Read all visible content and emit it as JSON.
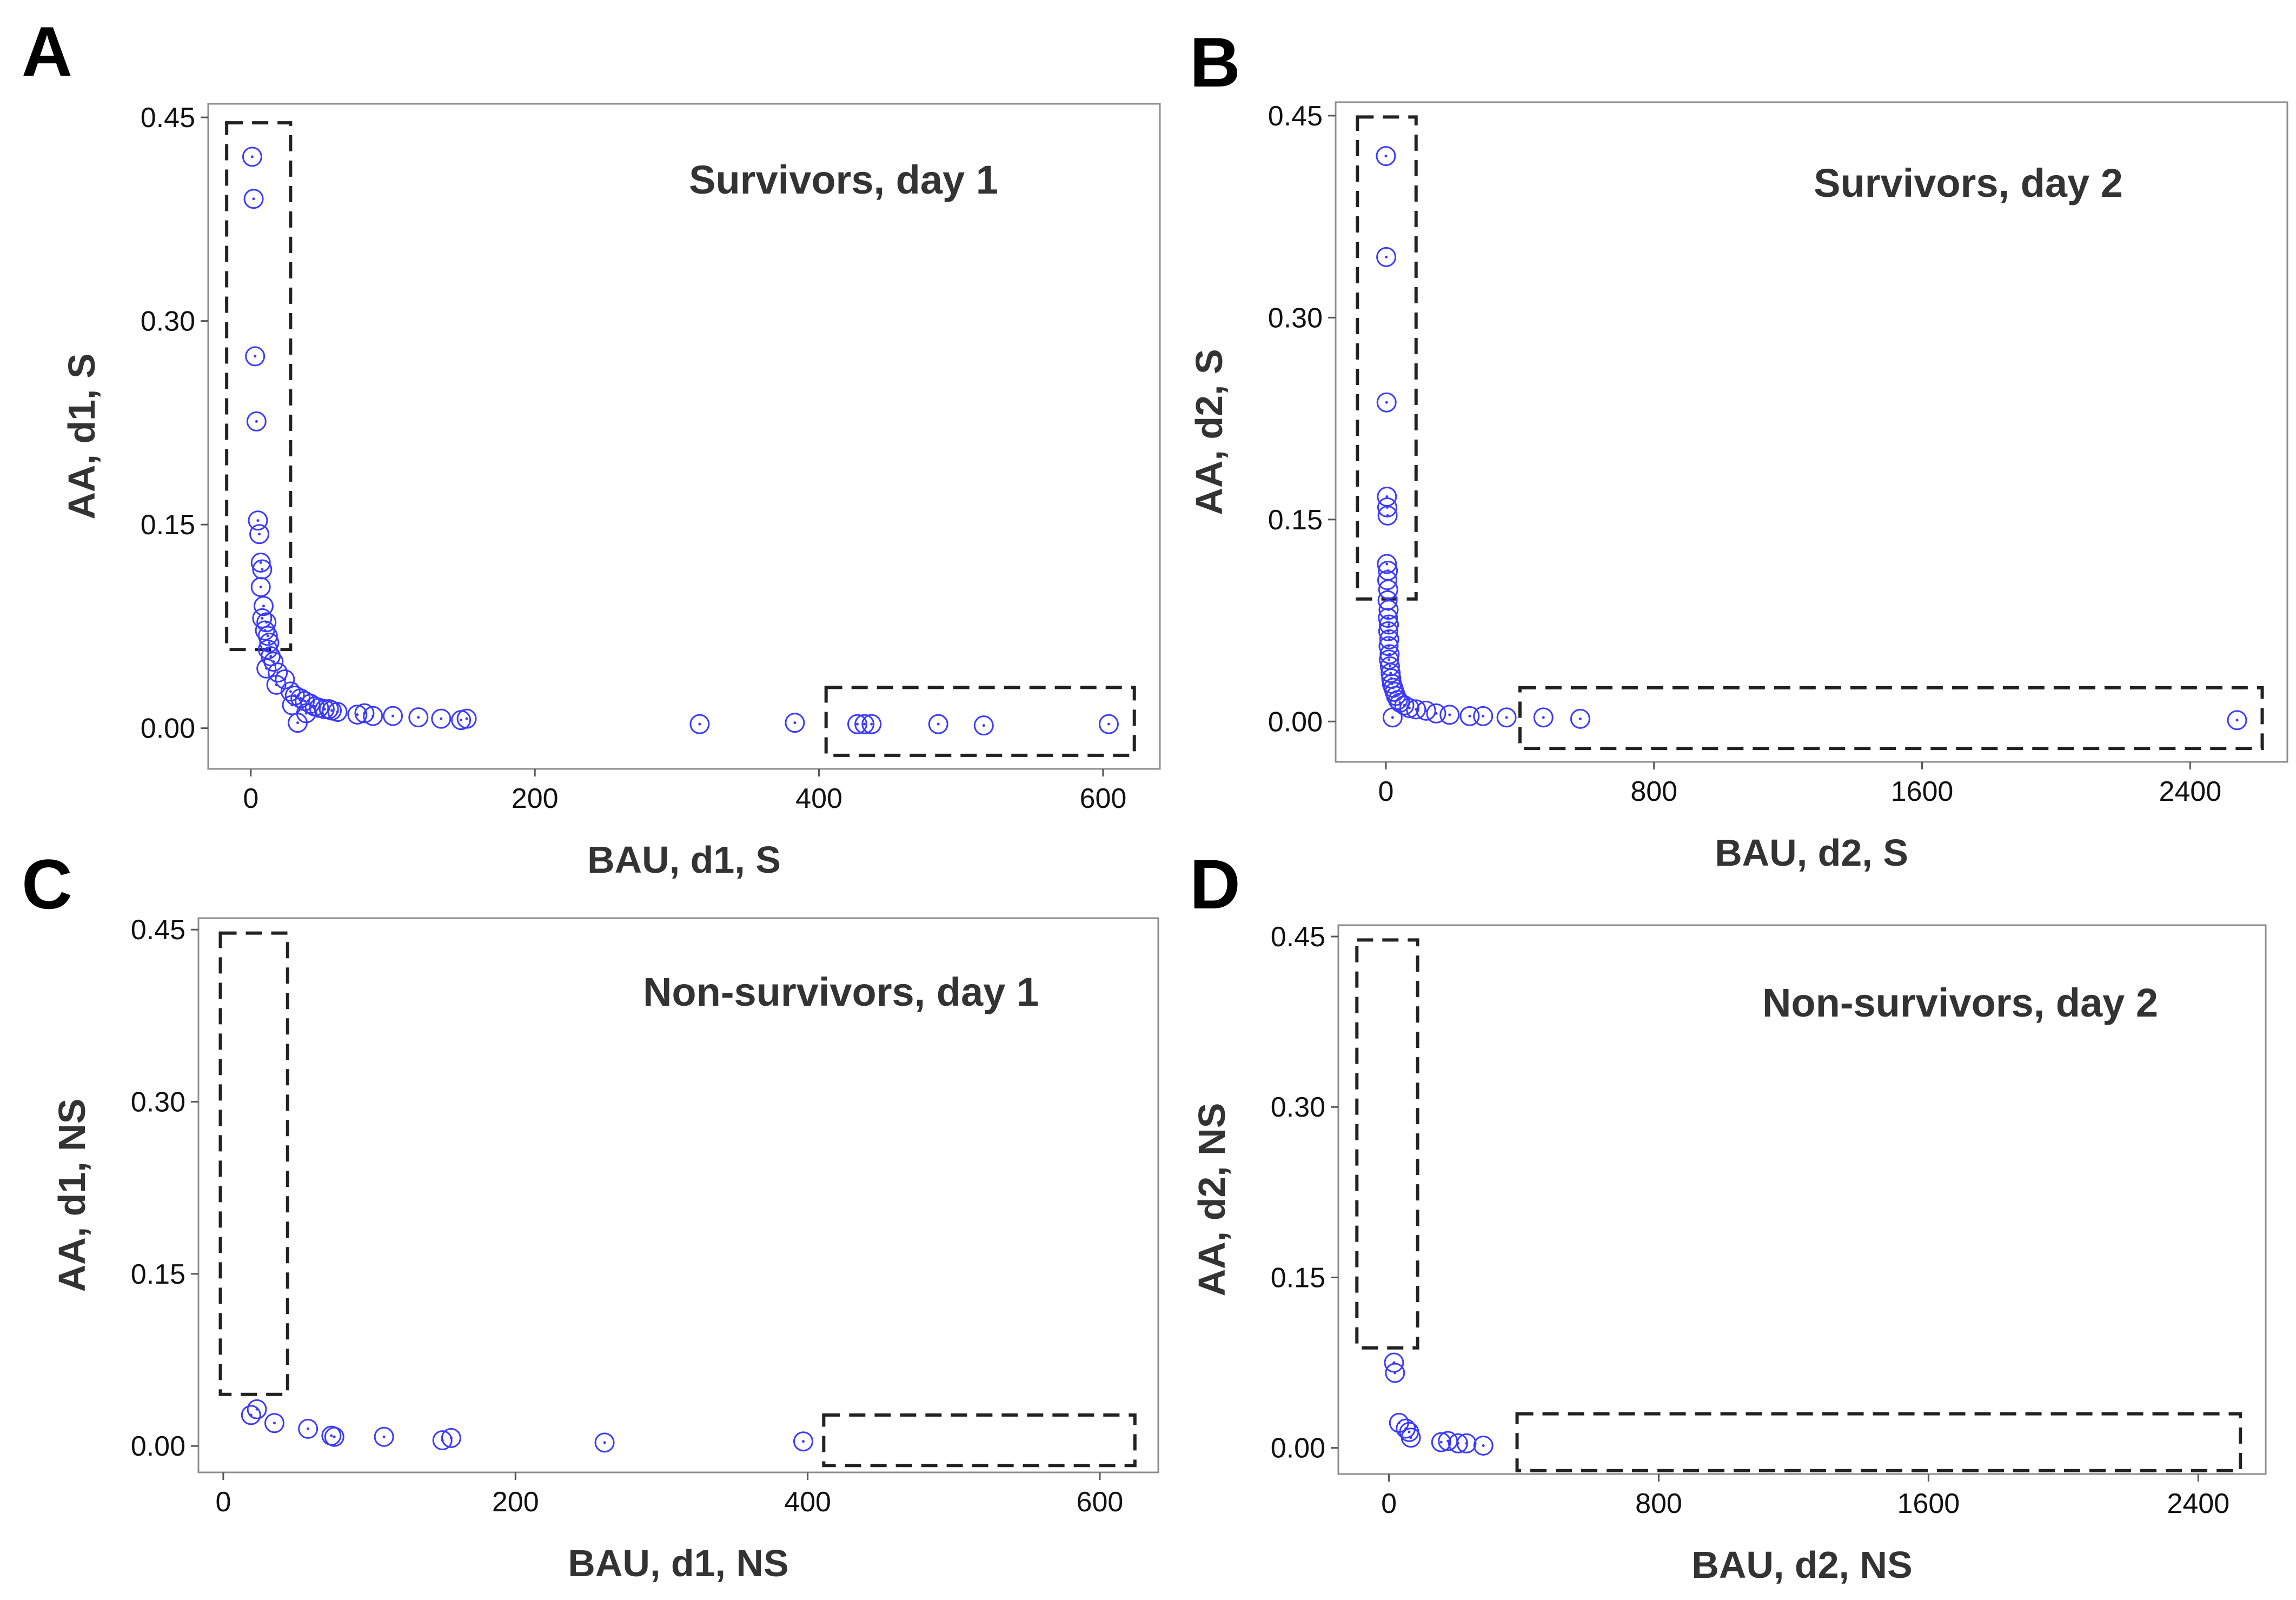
{
  "chart_data": [
    {
      "type": "scatter",
      "panel": "A",
      "title": "Survivors, day 1",
      "xlabel": "BAU, d1, S",
      "ylabel": "AA, d1, S",
      "xlim": [
        -30,
        640
      ],
      "ylim": [
        -0.03,
        0.46
      ],
      "xticks": [
        0,
        200,
        400,
        600
      ],
      "xtick_labels": [
        "0",
        "200",
        "400",
        "600"
      ],
      "yticks": [
        0,
        0.15,
        0.3,
        0.45
      ],
      "ytick_labels": [
        "0.00",
        "0.15",
        "0.30",
        "0.45"
      ],
      "marker_color": "#3a3aff",
      "points": [
        [
          1,
          0.421
        ],
        [
          2,
          0.39
        ],
        [
          3,
          0.274
        ],
        [
          4,
          0.226
        ],
        [
          5,
          0.153
        ],
        [
          6,
          0.143
        ],
        [
          7,
          0.122
        ],
        [
          8,
          0.117
        ],
        [
          7,
          0.104
        ],
        [
          9,
          0.09
        ],
        [
          8,
          0.081
        ],
        [
          11,
          0.078
        ],
        [
          10,
          0.072
        ],
        [
          12,
          0.068
        ],
        [
          13,
          0.063
        ],
        [
          12,
          0.058
        ],
        [
          14,
          0.053
        ],
        [
          16,
          0.049
        ],
        [
          11,
          0.044
        ],
        [
          19,
          0.041
        ],
        [
          24,
          0.036
        ],
        [
          18,
          0.032
        ],
        [
          28,
          0.027
        ],
        [
          31,
          0.024
        ],
        [
          35,
          0.022
        ],
        [
          38,
          0.02
        ],
        [
          42,
          0.018
        ],
        [
          29,
          0.017
        ],
        [
          45,
          0.016
        ],
        [
          48,
          0.015
        ],
        [
          52,
          0.014
        ],
        [
          57,
          0.013
        ],
        [
          61,
          0.012
        ],
        [
          39,
          0.011
        ],
        [
          75,
          0.01
        ],
        [
          80,
          0.011
        ],
        [
          86,
          0.009
        ],
        [
          100,
          0.009
        ],
        [
          118,
          0.008
        ],
        [
          134,
          0.007
        ],
        [
          148,
          0.006
        ],
        [
          152,
          0.007
        ],
        [
          33,
          0.004
        ],
        [
          55,
          0.014
        ],
        [
          316,
          0.003
        ],
        [
          383,
          0.004
        ],
        [
          427,
          0.003
        ],
        [
          432,
          0.003
        ],
        [
          437,
          0.003
        ],
        [
          484,
          0.003
        ],
        [
          516,
          0.002
        ],
        [
          604,
          0.003
        ]
      ],
      "dashed_boxes": [
        {
          "x": [
            -17,
            28
          ],
          "y": [
            0.058,
            0.446
          ]
        },
        {
          "x": [
            405,
            622
          ],
          "y": [
            -0.02,
            0.03
          ]
        }
      ]
    },
    {
      "type": "scatter",
      "panel": "B",
      "title": "Survivors, day 2",
      "xlabel": "BAU, d2, S",
      "ylabel": "AA, d2, S",
      "xlim": [
        -150,
        2690
      ],
      "ylim": [
        -0.03,
        0.46
      ],
      "xticks": [
        0,
        800,
        1600,
        2400
      ],
      "xtick_labels": [
        "0",
        "800",
        "1600",
        "2400"
      ],
      "yticks": [
        0,
        0.15,
        0.3,
        0.45
      ],
      "ytick_labels": [
        "0.00",
        "0.15",
        "0.30",
        "0.45"
      ],
      "marker_color": "#3a3aff",
      "points": [
        [
          0,
          0.42
        ],
        [
          1,
          0.345
        ],
        [
          2,
          0.237
        ],
        [
          3,
          0.167
        ],
        [
          4,
          0.159
        ],
        [
          5,
          0.153
        ],
        [
          3,
          0.117
        ],
        [
          6,
          0.112
        ],
        [
          4,
          0.105
        ],
        [
          7,
          0.098
        ],
        [
          5,
          0.09
        ],
        [
          8,
          0.083
        ],
        [
          6,
          0.077
        ],
        [
          9,
          0.072
        ],
        [
          7,
          0.067
        ],
        [
          10,
          0.061
        ],
        [
          8,
          0.056
        ],
        [
          11,
          0.05
        ],
        [
          9,
          0.046
        ],
        [
          12,
          0.041
        ],
        [
          14,
          0.036
        ],
        [
          16,
          0.032
        ],
        [
          18,
          0.028
        ],
        [
          22,
          0.025
        ],
        [
          26,
          0.022
        ],
        [
          30,
          0.019
        ],
        [
          36,
          0.016
        ],
        [
          42,
          0.014
        ],
        [
          55,
          0.012
        ],
        [
          70,
          0.01
        ],
        [
          90,
          0.009
        ],
        [
          120,
          0.008
        ],
        [
          150,
          0.006
        ],
        [
          190,
          0.005
        ],
        [
          250,
          0.004
        ],
        [
          290,
          0.004
        ],
        [
          360,
          0.003
        ],
        [
          20,
          0.003
        ],
        [
          470,
          0.003
        ],
        [
          580,
          0.002
        ],
        [
          2540,
          0.001
        ]
      ],
      "dashed_boxes": [
        {
          "x": [
            -85,
            90
          ],
          "y": [
            0.091,
            0.449
          ]
        },
        {
          "x": [
            400,
            2615
          ],
          "y": [
            -0.02,
            0.025
          ]
        }
      ]
    },
    {
      "type": "scatter",
      "panel": "C",
      "title": "Non-survivors, day 1",
      "xlabel": "BAU, d1, NS",
      "ylabel": "AA, d1, NS",
      "xlim": [
        -17,
        640
      ],
      "ylim": [
        -0.023,
        0.46
      ],
      "xticks": [
        0,
        200,
        400,
        600
      ],
      "xtick_labels": [
        "0",
        "200",
        "400",
        "600"
      ],
      "yticks": [
        0,
        0.15,
        0.3,
        0.45
      ],
      "ytick_labels": [
        "0.00",
        "0.15",
        "0.30",
        "0.45"
      ],
      "marker_color": "#3a3aff",
      "points": [
        [
          19,
          0.027
        ],
        [
          23,
          0.032
        ],
        [
          35,
          0.02
        ],
        [
          58,
          0.015
        ],
        [
          74,
          0.009
        ],
        [
          76,
          0.008
        ],
        [
          110,
          0.008
        ],
        [
          150,
          0.005
        ],
        [
          156,
          0.007
        ],
        [
          261,
          0.003
        ],
        [
          397,
          0.004
        ]
      ],
      "dashed_boxes": [
        {
          "x": [
            -2,
            44
          ],
          "y": [
            0.045,
            0.447
          ]
        },
        {
          "x": [
            411,
            624
          ],
          "y": [
            -0.017,
            0.027
          ]
        }
      ]
    },
    {
      "type": "scatter",
      "panel": "D",
      "title": "Non-survivors, day 2",
      "xlabel": "BAU, d2, NS",
      "ylabel": "AA, d2, NS",
      "xlim": [
        -150,
        2600
      ],
      "ylim": [
        -0.023,
        0.46
      ],
      "xticks": [
        0,
        800,
        1600,
        2400
      ],
      "xtick_labels": [
        "0",
        "800",
        "1600",
        "2400"
      ],
      "yticks": [
        0,
        0.15,
        0.3,
        0.45
      ],
      "ytick_labels": [
        "0.00",
        "0.15",
        "0.30",
        "0.45"
      ],
      "marker_color": "#3a3aff",
      "points": [
        [
          15,
          0.075
        ],
        [
          18,
          0.066
        ],
        [
          30,
          0.022
        ],
        [
          50,
          0.017
        ],
        [
          60,
          0.014
        ],
        [
          65,
          0.009
        ],
        [
          155,
          0.005
        ],
        [
          175,
          0.006
        ],
        [
          205,
          0.004
        ],
        [
          230,
          0.004
        ],
        [
          280,
          0.002
        ]
      ],
      "dashed_boxes": [
        {
          "x": [
            -95,
            85
          ],
          "y": [
            0.088,
            0.447
          ]
        },
        {
          "x": [
            380,
            2525
          ],
          "y": [
            -0.02,
            0.03
          ]
        }
      ]
    }
  ]
}
